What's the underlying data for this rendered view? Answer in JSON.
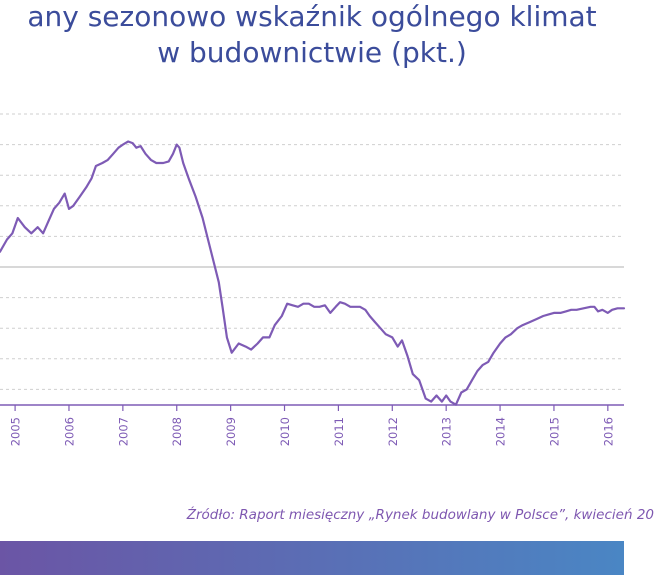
{
  "title_line1": "any sezonowo wskaźnik ogólnego klimat",
  "title_line2": "w budownictwie (pkt.)",
  "source": "Źródło: Raport miesięczny „Rynek budowlany w Polsce”, kwiecień 20",
  "colors": {
    "title": "#3b4c9b",
    "line": "#7e5bb5",
    "grid": "#cfcfcf",
    "zero_line": "#cccccc",
    "axis": "#7e5bb5",
    "tick_label": "#7e5bb5",
    "footer_start": "#6b55a5",
    "footer_end": "#4a86c4"
  },
  "chart_data": {
    "type": "line",
    "title": "",
    "xlabel": "",
    "ylabel": "",
    "x_tick_labels": [
      "2005",
      "2006",
      "2007",
      "2008",
      "2009",
      "2010",
      "2011",
      "2012",
      "2013",
      "2014",
      "2015",
      "2016"
    ],
    "xlim": [
      2004.72,
      2016.3
    ],
    "ylim": [
      -50,
      50
    ],
    "grid": true,
    "series": [
      {
        "values": [
          [
            2004.72,
            5
          ],
          [
            2004.85,
            9
          ],
          [
            2004.95,
            11
          ],
          [
            2005.05,
            16
          ],
          [
            2005.18,
            13
          ],
          [
            2005.3,
            11
          ],
          [
            2005.42,
            13
          ],
          [
            2005.52,
            11
          ],
          [
            2005.62,
            15
          ],
          [
            2005.72,
            19
          ],
          [
            2005.82,
            21
          ],
          [
            2005.92,
            24
          ],
          [
            2006.0,
            19
          ],
          [
            2006.08,
            20
          ],
          [
            2006.2,
            23
          ],
          [
            2006.32,
            26
          ],
          [
            2006.42,
            29
          ],
          [
            2006.5,
            33
          ],
          [
            2006.62,
            34
          ],
          [
            2006.72,
            35
          ],
          [
            2006.82,
            37
          ],
          [
            2006.92,
            39
          ],
          [
            2007.0,
            40
          ],
          [
            2007.1,
            41
          ],
          [
            2007.18,
            40.5
          ],
          [
            2007.25,
            39
          ],
          [
            2007.33,
            39.5
          ],
          [
            2007.42,
            37
          ],
          [
            2007.52,
            35
          ],
          [
            2007.62,
            34
          ],
          [
            2007.75,
            34
          ],
          [
            2007.85,
            34.5
          ],
          [
            2007.93,
            37
          ],
          [
            2008.0,
            40
          ],
          [
            2008.05,
            39
          ],
          [
            2008.12,
            34
          ],
          [
            2008.22,
            29
          ],
          [
            2008.35,
            23
          ],
          [
            2008.48,
            16
          ],
          [
            2008.58,
            9
          ],
          [
            2008.68,
            2
          ],
          [
            2008.78,
            -5
          ],
          [
            2008.85,
            -13
          ],
          [
            2008.93,
            -23
          ],
          [
            2009.02,
            -28
          ],
          [
            2009.15,
            -25
          ],
          [
            2009.28,
            -26
          ],
          [
            2009.38,
            -27
          ],
          [
            2009.5,
            -25
          ],
          [
            2009.6,
            -23
          ],
          [
            2009.72,
            -23
          ],
          [
            2009.82,
            -19
          ],
          [
            2009.95,
            -16
          ],
          [
            2010.05,
            -12
          ],
          [
            2010.15,
            -12.5
          ],
          [
            2010.25,
            -13
          ],
          [
            2010.35,
            -12
          ],
          [
            2010.45,
            -12
          ],
          [
            2010.55,
            -13
          ],
          [
            2010.65,
            -13
          ],
          [
            2010.75,
            -12.5
          ],
          [
            2010.85,
            -15
          ],
          [
            2010.95,
            -13
          ],
          [
            2011.03,
            -11.5
          ],
          [
            2011.12,
            -12
          ],
          [
            2011.22,
            -13
          ],
          [
            2011.32,
            -13
          ],
          [
            2011.4,
            -13
          ],
          [
            2011.5,
            -14
          ],
          [
            2011.58,
            -16
          ],
          [
            2011.68,
            -18
          ],
          [
            2011.78,
            -20
          ],
          [
            2011.88,
            -22
          ],
          [
            2012.0,
            -23
          ],
          [
            2012.1,
            -26
          ],
          [
            2012.18,
            -24
          ],
          [
            2012.28,
            -29
          ],
          [
            2012.38,
            -35
          ],
          [
            2012.5,
            -37
          ],
          [
            2012.62,
            -43
          ],
          [
            2012.72,
            -44
          ],
          [
            2012.82,
            -42
          ],
          [
            2012.92,
            -44
          ],
          [
            2013.0,
            -42
          ],
          [
            2013.08,
            -44
          ],
          [
            2013.18,
            -45
          ],
          [
            2013.28,
            -41
          ],
          [
            2013.38,
            -40
          ],
          [
            2013.48,
            -37
          ],
          [
            2013.58,
            -34
          ],
          [
            2013.68,
            -32
          ],
          [
            2013.78,
            -31
          ],
          [
            2013.88,
            -28
          ],
          [
            2014.0,
            -25
          ],
          [
            2014.1,
            -23
          ],
          [
            2014.2,
            -22
          ],
          [
            2014.32,
            -20
          ],
          [
            2014.42,
            -19
          ],
          [
            2014.55,
            -18
          ],
          [
            2014.68,
            -17
          ],
          [
            2014.8,
            -16
          ],
          [
            2014.9,
            -15.5
          ],
          [
            2015.0,
            -15
          ],
          [
            2015.12,
            -15
          ],
          [
            2015.22,
            -14.5
          ],
          [
            2015.32,
            -14
          ],
          [
            2015.42,
            -14
          ],
          [
            2015.55,
            -13.5
          ],
          [
            2015.68,
            -13
          ],
          [
            2015.75,
            -13
          ],
          [
            2015.82,
            -14.5
          ],
          [
            2015.9,
            -14
          ],
          [
            2016.0,
            -15
          ],
          [
            2016.08,
            -14
          ],
          [
            2016.18,
            -13.5
          ],
          [
            2016.3,
            -13.5
          ]
        ]
      }
    ]
  }
}
